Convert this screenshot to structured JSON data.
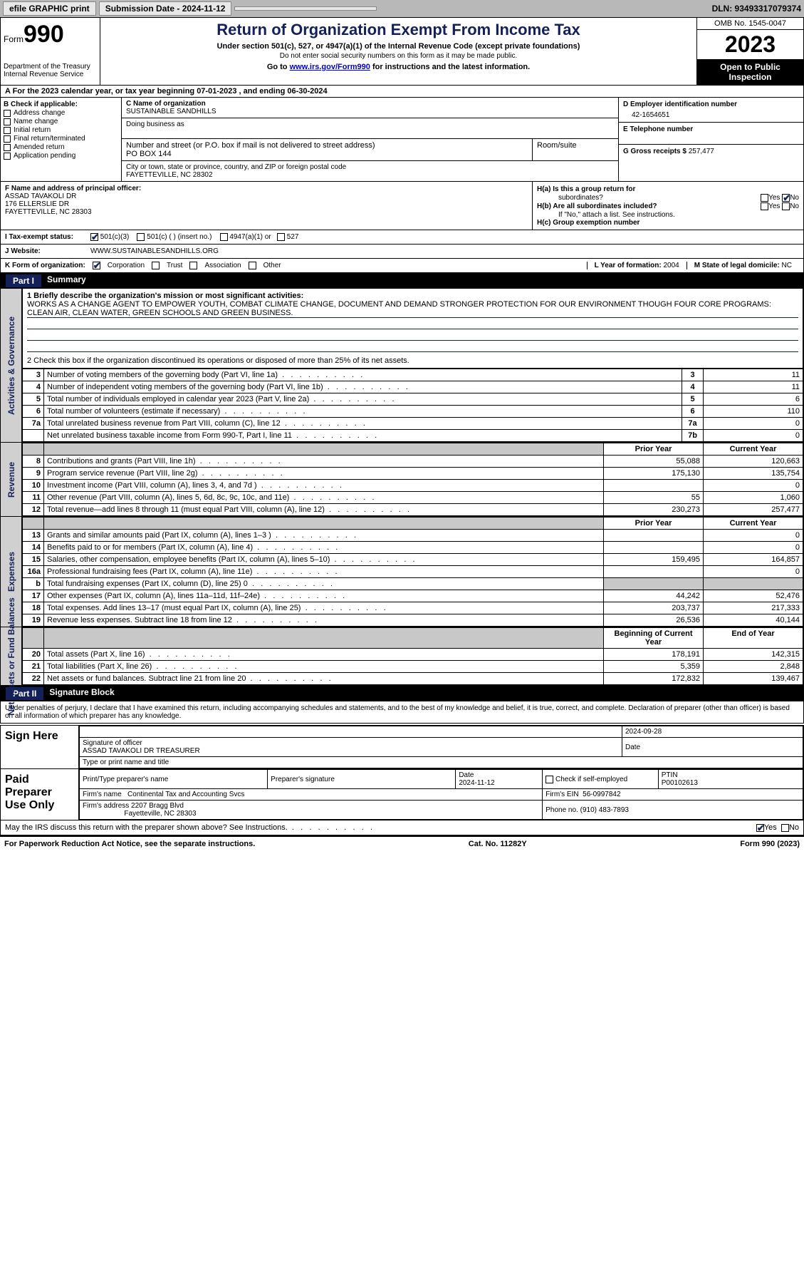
{
  "topbar": {
    "efile_label": "efile GRAPHIC print",
    "submission_label": "Submission Date - 2024-11-12",
    "dln": "DLN: 93493317079374"
  },
  "header": {
    "form_label": "Form",
    "form_num": "990",
    "dept": "Department of the Treasury\nInternal Revenue Service",
    "title": "Return of Organization Exempt From Income Tax",
    "sub1": "Under section 501(c), 527, or 4947(a)(1) of the Internal Revenue Code (except private foundations)",
    "sub2": "Do not enter social security numbers on this form as it may be made public.",
    "sub3_pre": "Go to ",
    "sub3_link": "www.irs.gov/Form990",
    "sub3_post": " for instructions and the latest information.",
    "omb": "OMB No. 1545-0047",
    "year": "2023",
    "inspection": "Open to Public Inspection"
  },
  "line_a": "A   For the 2023 calendar year, or tax year beginning 07-01-2023    , and ending 06-30-2024",
  "sec_b": {
    "label": "B Check if applicable:",
    "items": [
      "Address change",
      "Name change",
      "Initial return",
      "Final return/terminated",
      "Amended return",
      "Application pending"
    ]
  },
  "sec_c": {
    "name_label": "C Name of organization",
    "name": "SUSTAINABLE SANDHILLS",
    "dba_label": "Doing business as",
    "addr_label": "Number and street (or P.O. box if mail is not delivered to street address)",
    "addr": "PO BOX 144",
    "room_label": "Room/suite",
    "city_label": "City or town, state or province, country, and ZIP or foreign postal code",
    "city": "FAYETTEVILLE, NC   28302"
  },
  "sec_d": {
    "label": "D Employer identification number",
    "value": "42-1654651"
  },
  "sec_e": {
    "label": "E Telephone number",
    "value": ""
  },
  "sec_g": {
    "label": "G Gross receipts $",
    "value": "257,477"
  },
  "sec_f": {
    "label": "F  Name and address of principal officer:",
    "name": "ASSAD TAVAKOLI DR",
    "addr1": "176 ELLERSLIE DR",
    "addr2": "FAYETTEVILLE, NC   28303"
  },
  "sec_h": {
    "a_label": "H(a)  Is this a group return for",
    "a_label2": "subordinates?",
    "b_label": "H(b)  Are all subordinates included?",
    "b_note": "If \"No,\" attach a list. See instructions.",
    "c_label": "H(c)  Group exemption number",
    "yes": "Yes",
    "no": "No"
  },
  "row_i": {
    "label": "I    Tax-exempt status:",
    "opts": [
      "501(c)(3)",
      "501(c) (  ) (insert no.)",
      "4947(a)(1) or",
      "527"
    ]
  },
  "row_j": {
    "label": "J    Website:",
    "value": "WWW.SUSTAINABLESANDHILLS.ORG"
  },
  "row_k": {
    "label": "K Form of organization:",
    "opts": [
      "Corporation",
      "Trust",
      "Association",
      "Other"
    ],
    "l_label": "L Year of formation:",
    "l_val": "2004",
    "m_label": "M State of legal domicile:",
    "m_val": "NC"
  },
  "parts": {
    "p1_num": "Part I",
    "p1_title": "Summary",
    "p2_num": "Part II",
    "p2_title": "Signature Block"
  },
  "summary": {
    "line1_label": "1   Briefly describe the organization's mission or most significant activities:",
    "mission": "WORKS AS A CHANGE AGENT TO EMPOWER YOUTH, COMBAT CLIMATE CHANGE, DOCUMENT AND DEMAND STRONGER PROTECTION FOR OUR ENVIRONMENT THOUGH FOUR CORE PROGRAMS: CLEAN AIR, CLEAN WATER, GREEN SCHOOLS AND GREEN BUSINESS.",
    "line2": "2   Check this box        if the organization discontinued its operations or disposed of more than 25% of its net assets.",
    "side_ag": "Activities & Governance",
    "side_rev": "Revenue",
    "side_exp": "Expenses",
    "side_na": "Net Assets or Fund Balances",
    "rows_ag": [
      {
        "n": "3",
        "d": "Number of voting members of the governing body (Part VI, line 1a)",
        "b": "3",
        "v": "11"
      },
      {
        "n": "4",
        "d": "Number of independent voting members of the governing body (Part VI, line 1b)",
        "b": "4",
        "v": "11"
      },
      {
        "n": "5",
        "d": "Total number of individuals employed in calendar year 2023 (Part V, line 2a)",
        "b": "5",
        "v": "6"
      },
      {
        "n": "6",
        "d": "Total number of volunteers (estimate if necessary)",
        "b": "6",
        "v": "110"
      },
      {
        "n": "7a",
        "d": "Total unrelated business revenue from Part VIII, column (C), line 12",
        "b": "7a",
        "v": "0"
      },
      {
        "n": "",
        "d": "Net unrelated business taxable income from Form 990-T, Part I, line 11",
        "b": "7b",
        "v": "0"
      }
    ],
    "col_prior": "Prior Year",
    "col_curr": "Current Year",
    "rows_rev": [
      {
        "n": "8",
        "d": "Contributions and grants (Part VIII, line 1h)",
        "p": "55,088",
        "c": "120,663"
      },
      {
        "n": "9",
        "d": "Program service revenue (Part VIII, line 2g)",
        "p": "175,130",
        "c": "135,754"
      },
      {
        "n": "10",
        "d": "Investment income (Part VIII, column (A), lines 3, 4, and 7d )",
        "p": "",
        "c": "0"
      },
      {
        "n": "11",
        "d": "Other revenue (Part VIII, column (A), lines 5, 6d, 8c, 9c, 10c, and 11e)",
        "p": "55",
        "c": "1,060"
      },
      {
        "n": "12",
        "d": "Total revenue—add lines 8 through 11 (must equal Part VIII, column (A), line 12)",
        "p": "230,273",
        "c": "257,477"
      }
    ],
    "rows_exp": [
      {
        "n": "13",
        "d": "Grants and similar amounts paid (Part IX, column (A), lines 1–3 )",
        "p": "",
        "c": "0"
      },
      {
        "n": "14",
        "d": "Benefits paid to or for members (Part IX, column (A), line 4)",
        "p": "",
        "c": "0"
      },
      {
        "n": "15",
        "d": "Salaries, other compensation, employee benefits (Part IX, column (A), lines 5–10)",
        "p": "159,495",
        "c": "164,857"
      },
      {
        "n": "16a",
        "d": "Professional fundraising fees (Part IX, column (A), line 11e)",
        "p": "",
        "c": "0"
      },
      {
        "n": "b",
        "d": "Total fundraising expenses (Part IX, column (D), line 25) 0",
        "p": "grey",
        "c": "grey"
      },
      {
        "n": "17",
        "d": "Other expenses (Part IX, column (A), lines 11a–11d, 11f–24e)",
        "p": "44,242",
        "c": "52,476"
      },
      {
        "n": "18",
        "d": "Total expenses. Add lines 13–17 (must equal Part IX, column (A), line 25)",
        "p": "203,737",
        "c": "217,333"
      },
      {
        "n": "19",
        "d": "Revenue less expenses. Subtract line 18 from line 12",
        "p": "26,536",
        "c": "40,144"
      }
    ],
    "col_beg": "Beginning of Current Year",
    "col_end": "End of Year",
    "rows_na": [
      {
        "n": "20",
        "d": "Total assets (Part X, line 16)",
        "p": "178,191",
        "c": "142,315"
      },
      {
        "n": "21",
        "d": "Total liabilities (Part X, line 26)",
        "p": "5,359",
        "c": "2,848"
      },
      {
        "n": "22",
        "d": "Net assets or fund balances. Subtract line 21 from line 20",
        "p": "172,832",
        "c": "139,467"
      }
    ]
  },
  "sig": {
    "perjury": "Under penalties of perjury, I declare that I have examined this return, including accompanying schedules and statements, and to the best of my knowledge and belief, it is true, correct, and complete. Declaration of preparer (other than officer) is based on all information of which preparer has any knowledge.",
    "sign_here": "Sign Here",
    "sig_officer": "Signature of officer",
    "officer_name": "ASSAD TAVAKOLI DR  TREASURER",
    "type_name": "Type or print name and title",
    "date1": "2024-09-28",
    "date_lbl": "Date",
    "paid_prep": "Paid Preparer Use Only",
    "prep_name_lbl": "Print/Type preparer's name",
    "prep_sig_lbl": "Preparer's signature",
    "date2_lbl": "Date",
    "date2": "2024-11-12",
    "check_self": "Check          if self-employed",
    "ptin_lbl": "PTIN",
    "ptin": "P00102613",
    "firm_name_lbl": "Firm's name",
    "firm_name": "Continental Tax and Accounting Svcs",
    "firm_ein_lbl": "Firm's EIN",
    "firm_ein": "56-0997842",
    "firm_addr_lbl": "Firm's address",
    "firm_addr1": "2207 Bragg Blvd",
    "firm_addr2": "Fayetteville, NC   28303",
    "phone_lbl": "Phone no.",
    "phone": "(910) 483-7893",
    "discuss": "May the IRS discuss this return with the preparer shown above? See Instructions."
  },
  "footer": {
    "left": "For Paperwork Reduction Act Notice, see the separate instructions.",
    "mid": "Cat. No. 11282Y",
    "right": "Form 990 (2023)"
  },
  "colors": {
    "navy": "#14205a",
    "greybar": "#b8b8b8",
    "cellgrey": "#c8c8c8",
    "link": "#0000cc"
  }
}
